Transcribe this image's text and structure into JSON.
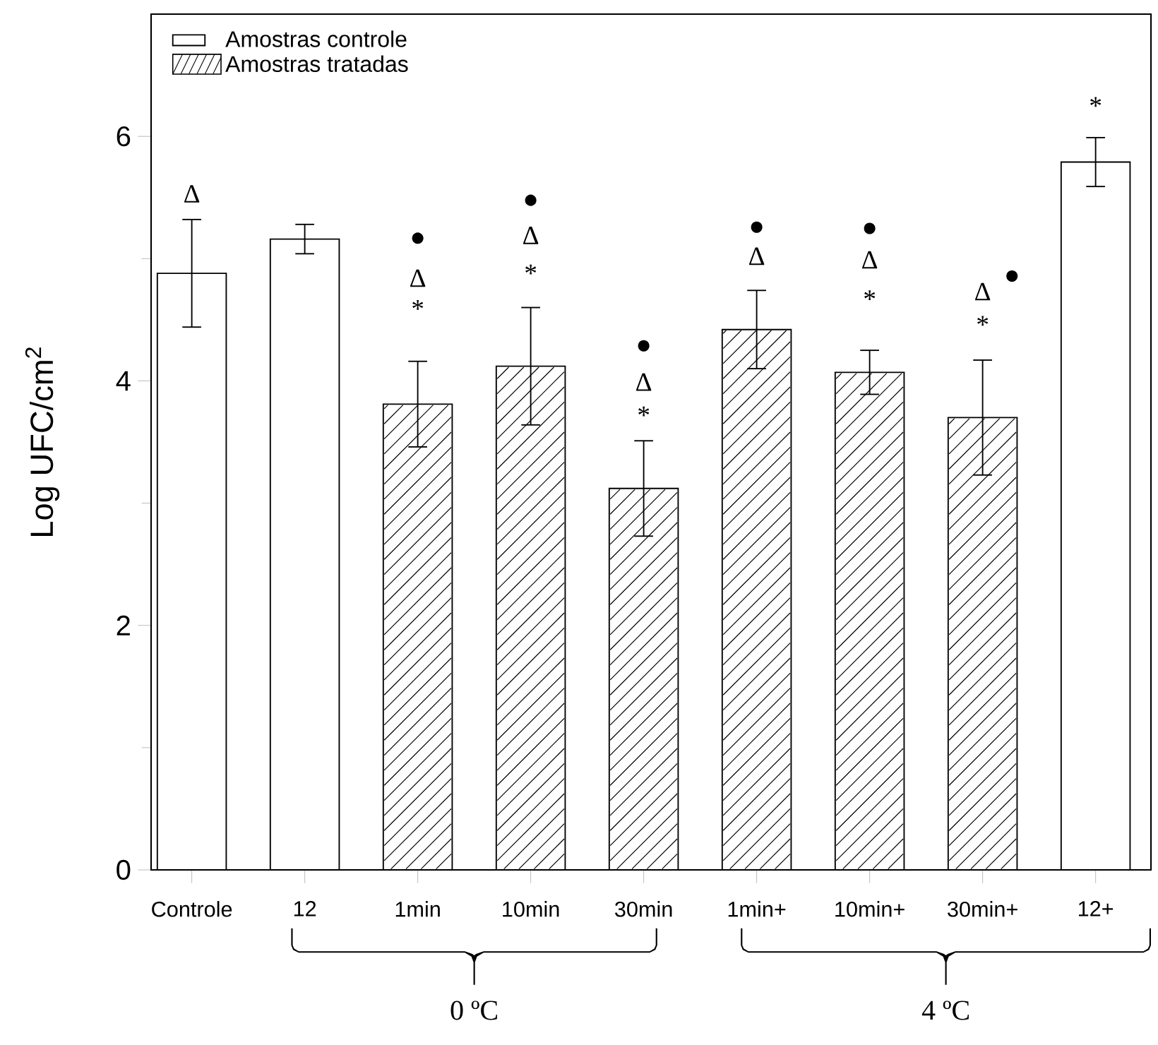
{
  "chart_data": {
    "type": "bar",
    "ylabel": "Log UFC/cm$^{2}$",
    "categories": [
      "Controle",
      "12",
      "1min",
      "10min",
      "30min",
      "1min+",
      "10min+",
      "30min+",
      "12+"
    ],
    "series": [
      {
        "name": "Amostras controle",
        "color": "#ffffff",
        "values": [
          4.88,
          5.16,
          null,
          null,
          null,
          null,
          null,
          null,
          5.79
        ],
        "errors": [
          0.44,
          0.12,
          null,
          null,
          null,
          null,
          null,
          null,
          0.2
        ]
      },
      {
        "name": "Amostras tratadas",
        "color": "#000000",
        "values": [
          null,
          null,
          3.81,
          4.12,
          3.12,
          4.42,
          4.07,
          3.7,
          null
        ],
        "errors": [
          null,
          null,
          0.35,
          0.48,
          0.39,
          0.32,
          0.18,
          0.47,
          null
        ]
      }
    ],
    "ylim": [
      0,
      7
    ],
    "yticks": [
      0,
      2,
      4,
      6
    ],
    "legend": "top left",
    "annotations": [
      "Δ",
      "●",
      "Δ",
      "*",
      "●",
      "Δ",
      "*",
      "●",
      "Δ",
      "*",
      "●",
      "Δ",
      "●",
      "Δ",
      "*",
      "●",
      "Δ",
      "*",
      "*",
      "0 ºC",
      "4 ºC"
    ]
  }
}
